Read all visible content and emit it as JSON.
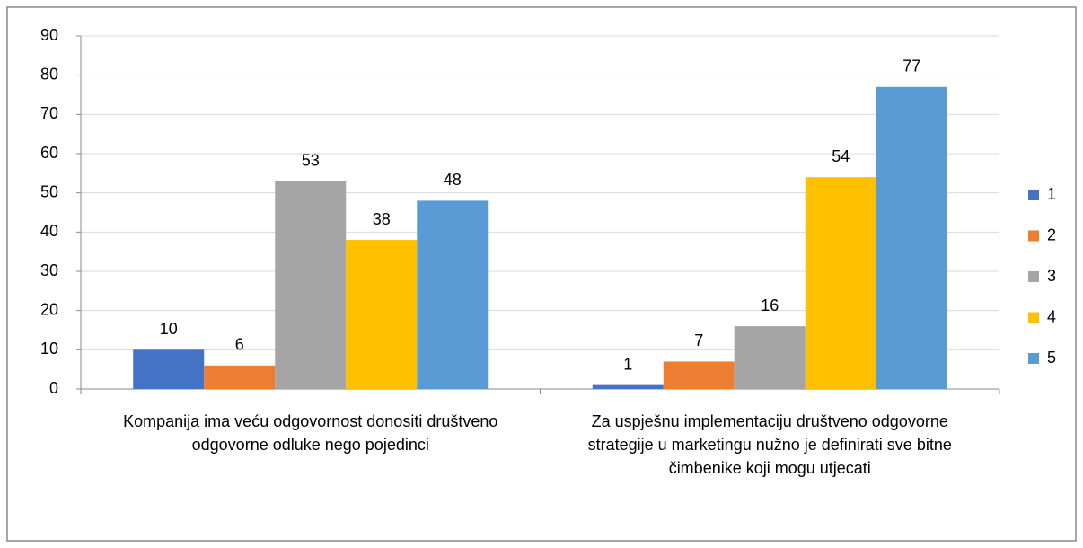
{
  "chart_data": {
    "type": "bar",
    "categories": [
      "Kompanija ima veću odgovornost donositi društveno odgovorne odluke nego pojedinci",
      "Za uspješnu implementaciju društveno odgovorne strategije u marketingu nužno je definirati sve bitne čimbenike koji mogu utjecati"
    ],
    "series": [
      {
        "name": "1",
        "color": "#4472c4",
        "values": [
          10,
          1
        ]
      },
      {
        "name": "2",
        "color": "#ed7d31",
        "values": [
          6,
          7
        ]
      },
      {
        "name": "3",
        "color": "#a5a5a5",
        "values": [
          53,
          16
        ]
      },
      {
        "name": "4",
        "color": "#ffc000",
        "values": [
          38,
          54
        ]
      },
      {
        "name": "5",
        "color": "#5b9bd5",
        "values": [
          48,
          77
        ]
      }
    ],
    "ylim": [
      0,
      90
    ],
    "yticks": [
      0,
      10,
      20,
      30,
      40,
      50,
      60,
      70,
      80,
      90
    ],
    "grid": true,
    "legend": "right"
  }
}
